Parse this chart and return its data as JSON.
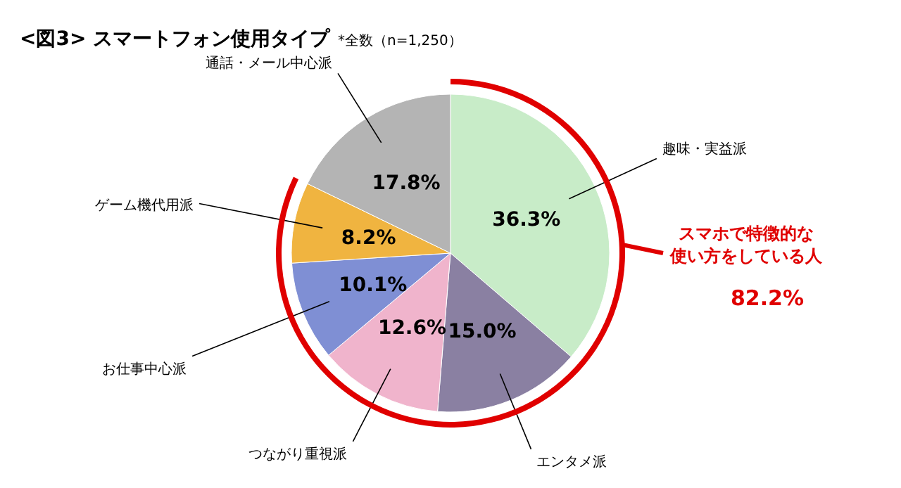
{
  "chart_data": {
    "type": "pie",
    "title": "<図3> スマートフォン使用タイプ",
    "subtitle": "*全数（n=1,250）",
    "categories": [
      "趣味・実益派",
      "エンタメ派",
      "つながり重視派",
      "お仕事中心派",
      "ゲーム機代用派",
      "通話・メール中心派"
    ],
    "values": [
      36.3,
      15.0,
      12.6,
      10.1,
      8.2,
      17.8
    ],
    "colors": [
      "#c8ecc8",
      "#8a80a2",
      "#f0b4cc",
      "#7f8fd4",
      "#f0b440",
      "#b4b4b4"
    ],
    "value_labels": [
      "36.3%",
      "15.0%",
      "12.6%",
      "10.1%",
      "8.2%",
      "17.8%"
    ],
    "annotations": [
      "スマホで特徴的な使い方をしている人",
      "82.2%"
    ]
  }
}
